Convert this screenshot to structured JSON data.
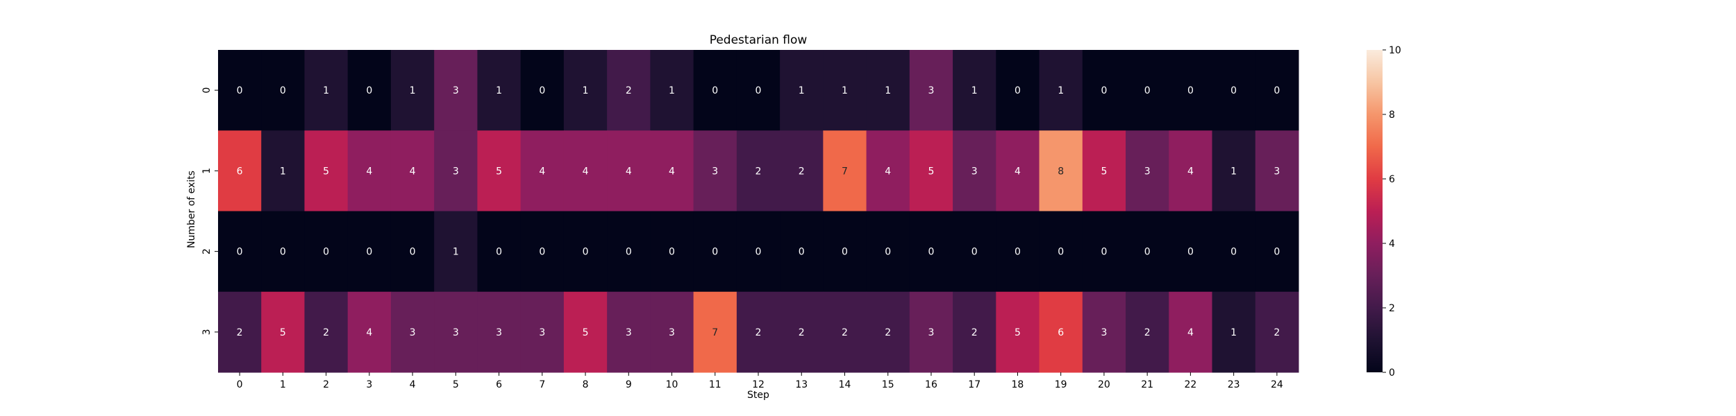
{
  "chart_data": {
    "type": "heatmap",
    "title": "Pedestarian flow",
    "xlabel": "Step",
    "ylabel": "Number of exits",
    "x_categories": [
      "0",
      "1",
      "2",
      "3",
      "4",
      "5",
      "6",
      "7",
      "8",
      "9",
      "10",
      "11",
      "12",
      "13",
      "14",
      "15",
      "16",
      "17",
      "18",
      "19",
      "20",
      "21",
      "22",
      "23",
      "24"
    ],
    "y_categories": [
      "0",
      "1",
      "2",
      "3"
    ],
    "values": [
      [
        0,
        0,
        1,
        0,
        1,
        3,
        1,
        0,
        1,
        2,
        1,
        0,
        0,
        1,
        1,
        1,
        3,
        1,
        0,
        1,
        0,
        0,
        0,
        0,
        0
      ],
      [
        6,
        1,
        5,
        4,
        4,
        3,
        5,
        4,
        4,
        4,
        4,
        3,
        2,
        2,
        7,
        4,
        5,
        3,
        4,
        8,
        5,
        3,
        4,
        1,
        3
      ],
      [
        0,
        0,
        0,
        0,
        0,
        1,
        0,
        0,
        0,
        0,
        0,
        0,
        0,
        0,
        0,
        0,
        0,
        0,
        0,
        0,
        0,
        0,
        0,
        0,
        0
      ],
      [
        2,
        5,
        2,
        4,
        3,
        3,
        3,
        3,
        5,
        3,
        3,
        7,
        2,
        2,
        2,
        2,
        3,
        2,
        5,
        6,
        3,
        2,
        4,
        1,
        2
      ]
    ],
    "colorbar": {
      "min": 0,
      "max": 10,
      "ticks": [
        "0",
        "2",
        "4",
        "6",
        "8",
        "10"
      ],
      "colormap": "rocket"
    }
  }
}
